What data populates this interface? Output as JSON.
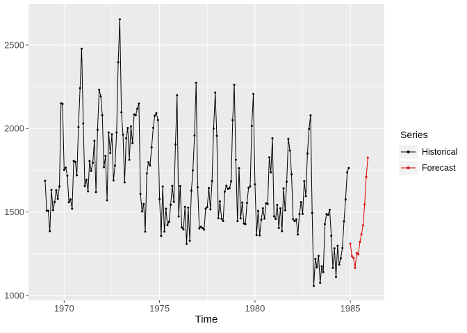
{
  "chart_data": {
    "type": "line",
    "title": "",
    "xlabel": "Time",
    "ylabel": "",
    "grid": true,
    "xlim": [
      1968.13,
      1986.78
    ],
    "ylim": [
      970,
      2745
    ],
    "x_ticks": [
      1970,
      1975,
      1980,
      1985
    ],
    "x_tick_labels": [
      "1970",
      "1975",
      "1980",
      "1985"
    ],
    "x_minor_ticks": [
      1972.5,
      1977.5,
      1982.5
    ],
    "y_ticks": [
      1000,
      1500,
      2000,
      2500
    ],
    "y_tick_labels": [
      "1000",
      "1500",
      "2000",
      "2500"
    ],
    "y_minor_ticks": [
      1250,
      1750,
      2250
    ],
    "legend": {
      "title": "Series",
      "position": "right",
      "items": [
        {
          "label": "Historical",
          "color": "#000000"
        },
        {
          "label": "Forecast",
          "color": "#DE0000"
        }
      ]
    },
    "series": [
      {
        "name": "Historical",
        "color": "#000000",
        "start_year": 1969,
        "frequency": 12,
        "values": [
          [
            1687,
            1508,
            1507,
            1385,
            1632,
            1511,
            1559,
            1630,
            1579,
            1653,
            2152,
            2148
          ],
          [
            1752,
            1765,
            1717,
            1558,
            1575,
            1520,
            1805,
            1800,
            1719,
            2008,
            2242,
            2478
          ],
          [
            2030,
            1655,
            1693,
            1623,
            1805,
            1746,
            1795,
            1926,
            1619,
            1992,
            2233,
            2192
          ],
          [
            2080,
            1768,
            1835,
            1569,
            1976,
            1853,
            1965,
            1689,
            1778,
            1976,
            2397,
            2654
          ],
          [
            2097,
            1963,
            1677,
            1941,
            2003,
            1813,
            2012,
            1912,
            2084,
            2080,
            2118,
            2150
          ],
          [
            1608,
            1503,
            1548,
            1382,
            1731,
            1798,
            1779,
            1887,
            2004,
            2077,
            2092,
            2051
          ],
          [
            1577,
            1356,
            1652,
            1382,
            1519,
            1421,
            1442,
            1543,
            1656,
            1561,
            1905,
            2199
          ],
          [
            1473,
            1655,
            1407,
            1395,
            1530,
            1309,
            1526,
            1327,
            1627,
            1748,
            1958,
            2274
          ],
          [
            1648,
            1401,
            1411,
            1403,
            1394,
            1520,
            1528,
            1643,
            1515,
            1685,
            2000,
            2215
          ],
          [
            1956,
            1462,
            1563,
            1459,
            1446,
            1622,
            1657,
            1638,
            1643,
            1683,
            2050,
            2262
          ],
          [
            1813,
            1445,
            1762,
            1461,
            1556,
            1431,
            1427,
            1554,
            1645,
            1653,
            2016,
            2207
          ],
          [
            1665,
            1361,
            1506,
            1360,
            1453,
            1522,
            1460,
            1552,
            1548,
            1827,
            1737,
            1941
          ],
          [
            1474,
            1458,
            1542,
            1404,
            1522,
            1385,
            1641,
            1510,
            1681,
            1938,
            1868,
            1726
          ],
          [
            1456,
            1445,
            1456,
            1365,
            1487,
            1558,
            1488,
            1684,
            1594,
            1850,
            1998,
            2079
          ],
          [
            1494,
            1057,
            1218,
            1168,
            1236,
            1076,
            1174,
            1139,
            1427,
            1487,
            1483,
            1513
          ],
          [
            1357,
            1165,
            1282,
            1110,
            1297,
            1185,
            1222,
            1284,
            1444,
            1575,
            1737,
            1763
          ]
        ]
      },
      {
        "name": "Forecast",
        "color": "#DE0000",
        "start_year": 1985,
        "frequency": 12,
        "values": [
          [
            1310,
            1235,
            1225,
            1165,
            1255,
            1245,
            1320,
            1365,
            1420,
            1545,
            1710,
            1825
          ]
        ]
      }
    ]
  },
  "colors": {
    "panel_bg": "#EBEBEB",
    "grid": "#FFFFFF",
    "tick_label": "#4D4D4D",
    "tick_mark": "#333333",
    "legend_key_bg": "#F2F2F2"
  }
}
